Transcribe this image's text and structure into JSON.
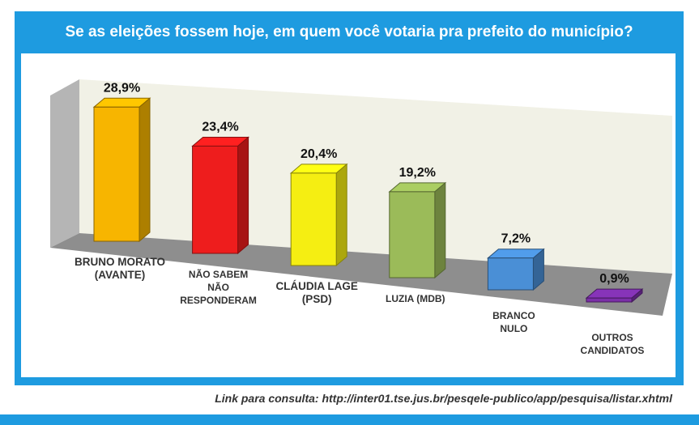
{
  "title": "Se as eleições fossem hoje, em quem você votaria pra prefeito do município?",
  "footer": "Link para consulta: http://inter01.tse.jus.br/pesqele-publico/app/pesquisa/listar.xhtml",
  "colors": {
    "frame": "#1e9be0",
    "title_text": "#ffffff"
  },
  "chart_data": {
    "type": "bar",
    "title": "Se as eleições fossem hoje, em quem você votaria pra prefeito do município?",
    "categories": [
      [
        "BRUNO MORATO",
        "(AVANTE)"
      ],
      [
        "NÃO SABEM",
        "NÃO",
        "RESPONDERAM"
      ],
      [
        "CLÁUDIA LAGE",
        "(PSD)"
      ],
      [
        "LUZIA (MDB)"
      ],
      [
        "BRANCO",
        "NULO"
      ],
      [
        "OUTROS",
        "CANDIDATOS"
      ]
    ],
    "values": [
      28.9,
      23.4,
      20.4,
      19.2,
      7.2,
      0.9
    ],
    "value_labels": [
      "28,9%",
      "23,4%",
      "20,4%",
      "19,2%",
      "7,2%",
      "0,9%"
    ],
    "bar_colors": [
      "#f7b500",
      "#ee1d1d",
      "#f5ee12",
      "#9bbb59",
      "#4a8fd6",
      "#7b2fa8"
    ],
    "ylim": [
      0,
      30
    ]
  }
}
